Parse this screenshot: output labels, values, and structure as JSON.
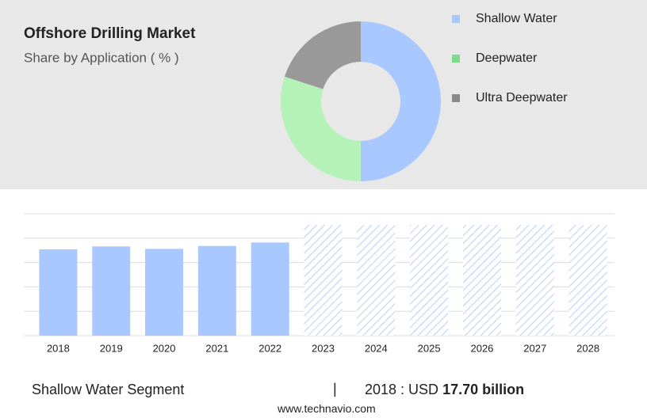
{
  "chart_data": [
    {
      "type": "pie",
      "title": "Offshore Drilling Market",
      "subtitle": "Share by Application ( % )",
      "categories": [
        "Shallow Water",
        "Deepwater",
        "Ultra Deepwater"
      ],
      "values": [
        50,
        30,
        20
      ],
      "colors": [
        "#a8c8ff",
        "#b5f2b8",
        "#999999"
      ],
      "legend_colors": [
        "#a6c8fb",
        "#7ddc8c",
        "#8a8a8a"
      ],
      "donut": true
    },
    {
      "type": "bar",
      "categories": [
        "2018",
        "2019",
        "2020",
        "2021",
        "2022",
        "2023",
        "2024",
        "2025",
        "2026",
        "2027",
        "2028"
      ],
      "values": [
        17.7,
        18.3,
        17.8,
        18.4,
        19.1,
        null,
        null,
        null,
        null,
        null,
        null
      ],
      "forecast_values": [
        null,
        null,
        null,
        null,
        null,
        22.7,
        22.7,
        22.7,
        22.7,
        22.7,
        22.7
      ],
      "color": "#a8c8ff",
      "ylim": [
        0,
        25
      ],
      "yticks": [
        0,
        5,
        10,
        15,
        20,
        25
      ],
      "grid": true
    }
  ],
  "footer": {
    "segment": "Shallow Water Segment",
    "separator": "|",
    "year_label": "2018 : USD",
    "value_text": "17.70 billion",
    "source": "www.technavio.com"
  }
}
